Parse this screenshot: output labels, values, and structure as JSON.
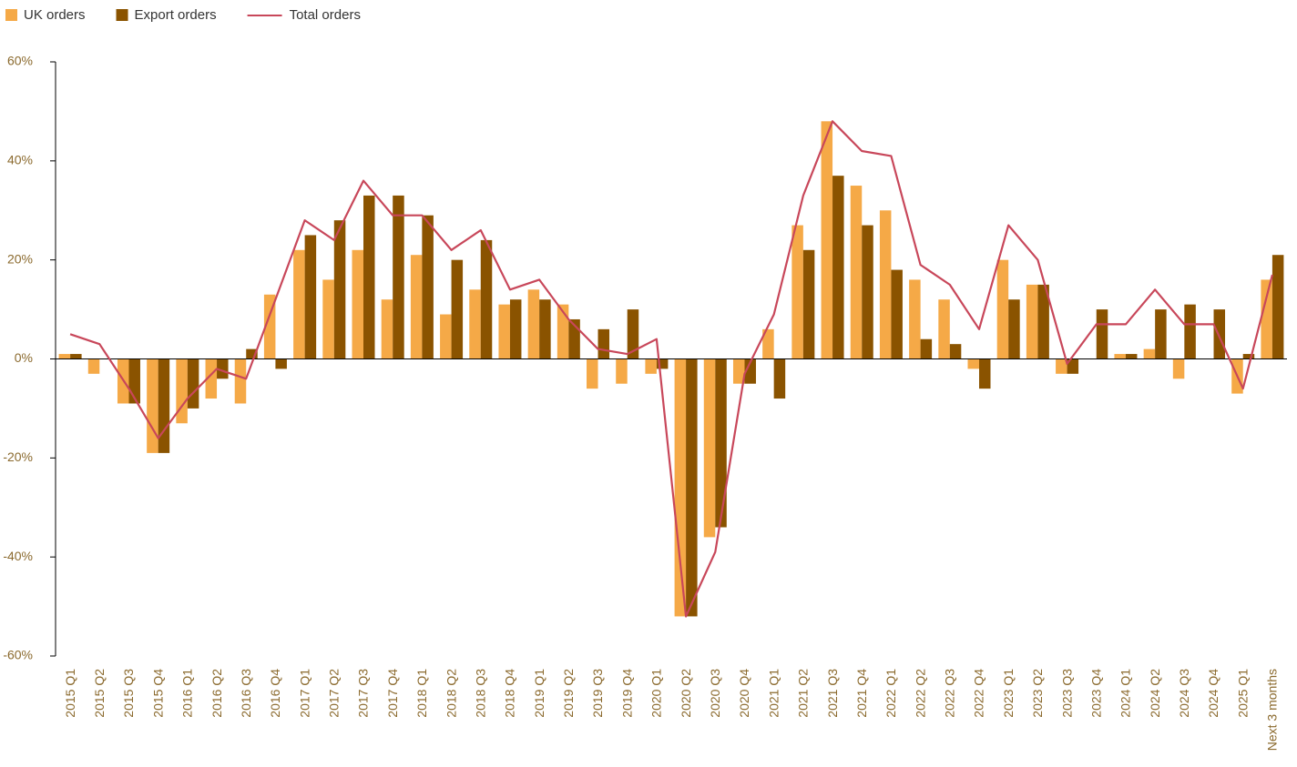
{
  "chart_data": {
    "type": "bar",
    "categories": [
      "2015 Q1",
      "2015 Q2",
      "2015 Q3",
      "2015 Q4",
      "2016 Q1",
      "2016 Q2",
      "2016 Q3",
      "2016 Q4",
      "2017 Q1",
      "2017 Q2",
      "2017 Q3",
      "2017 Q4",
      "2018 Q1",
      "2018 Q2",
      "2018 Q3",
      "2018 Q4",
      "2019 Q1",
      "2019 Q2",
      "2019 Q3",
      "2019 Q4",
      "2020 Q1",
      "2020 Q2",
      "2020 Q3",
      "2020 Q4",
      "2021 Q1",
      "2021 Q2",
      "2021 Q3",
      "2021 Q4",
      "2022 Q1",
      "2022 Q2",
      "2022 Q3",
      "2022 Q4",
      "2023 Q1",
      "2023 Q2",
      "2023 Q3",
      "2023 Q4",
      "2024 Q1",
      "2024 Q2",
      "2024 Q3",
      "2024 Q4",
      "2025 Q1",
      "Next 3 months"
    ],
    "series": [
      {
        "name": "UK orders",
        "type": "bar",
        "color": "#f5a947",
        "values": [
          1,
          -3,
          -9,
          -19,
          -13,
          -8,
          -9,
          13,
          22,
          16,
          22,
          12,
          21,
          9,
          14,
          11,
          14,
          11,
          -6,
          -5,
          -3,
          -52,
          -36,
          -5,
          6,
          27,
          48,
          35,
          30,
          16,
          12,
          -2,
          20,
          15,
          -3,
          0,
          1,
          2,
          -4,
          0,
          -7,
          16
        ]
      },
      {
        "name": "Export orders",
        "type": "bar",
        "color": "#8a5300",
        "values": [
          1,
          0,
          -9,
          -19,
          -10,
          -4,
          2,
          -2,
          25,
          28,
          33,
          33,
          29,
          20,
          24,
          12,
          12,
          8,
          6,
          10,
          -2,
          -52,
          -34,
          -5,
          -8,
          22,
          37,
          27,
          18,
          4,
          3,
          -6,
          12,
          15,
          -3,
          10,
          1,
          10,
          11,
          10,
          1,
          21
        ]
      },
      {
        "name": "Total orders",
        "type": "line",
        "color": "#c8475a",
        "values": [
          5,
          3,
          -6,
          -16,
          -8,
          -2,
          -4,
          12,
          28,
          24,
          36,
          29,
          29,
          22,
          26,
          14,
          16,
          8,
          2,
          1,
          4,
          -52,
          -39,
          -3,
          9,
          33,
          48,
          42,
          41,
          19,
          15,
          6,
          27,
          20,
          -1,
          7,
          7,
          14,
          7,
          7,
          -6,
          17
        ]
      }
    ],
    "ylim": [
      -60,
      60
    ],
    "yticks": [
      {
        "value": -60,
        "label": "-60%"
      },
      {
        "value": -40,
        "label": "-40%"
      },
      {
        "value": -20,
        "label": "-20%"
      },
      {
        "value": 0,
        "label": "0%"
      },
      {
        "value": 20,
        "label": "20%"
      },
      {
        "value": 40,
        "label": "40%"
      },
      {
        "value": 60,
        "label": "60%"
      }
    ],
    "legend": "top-left"
  }
}
